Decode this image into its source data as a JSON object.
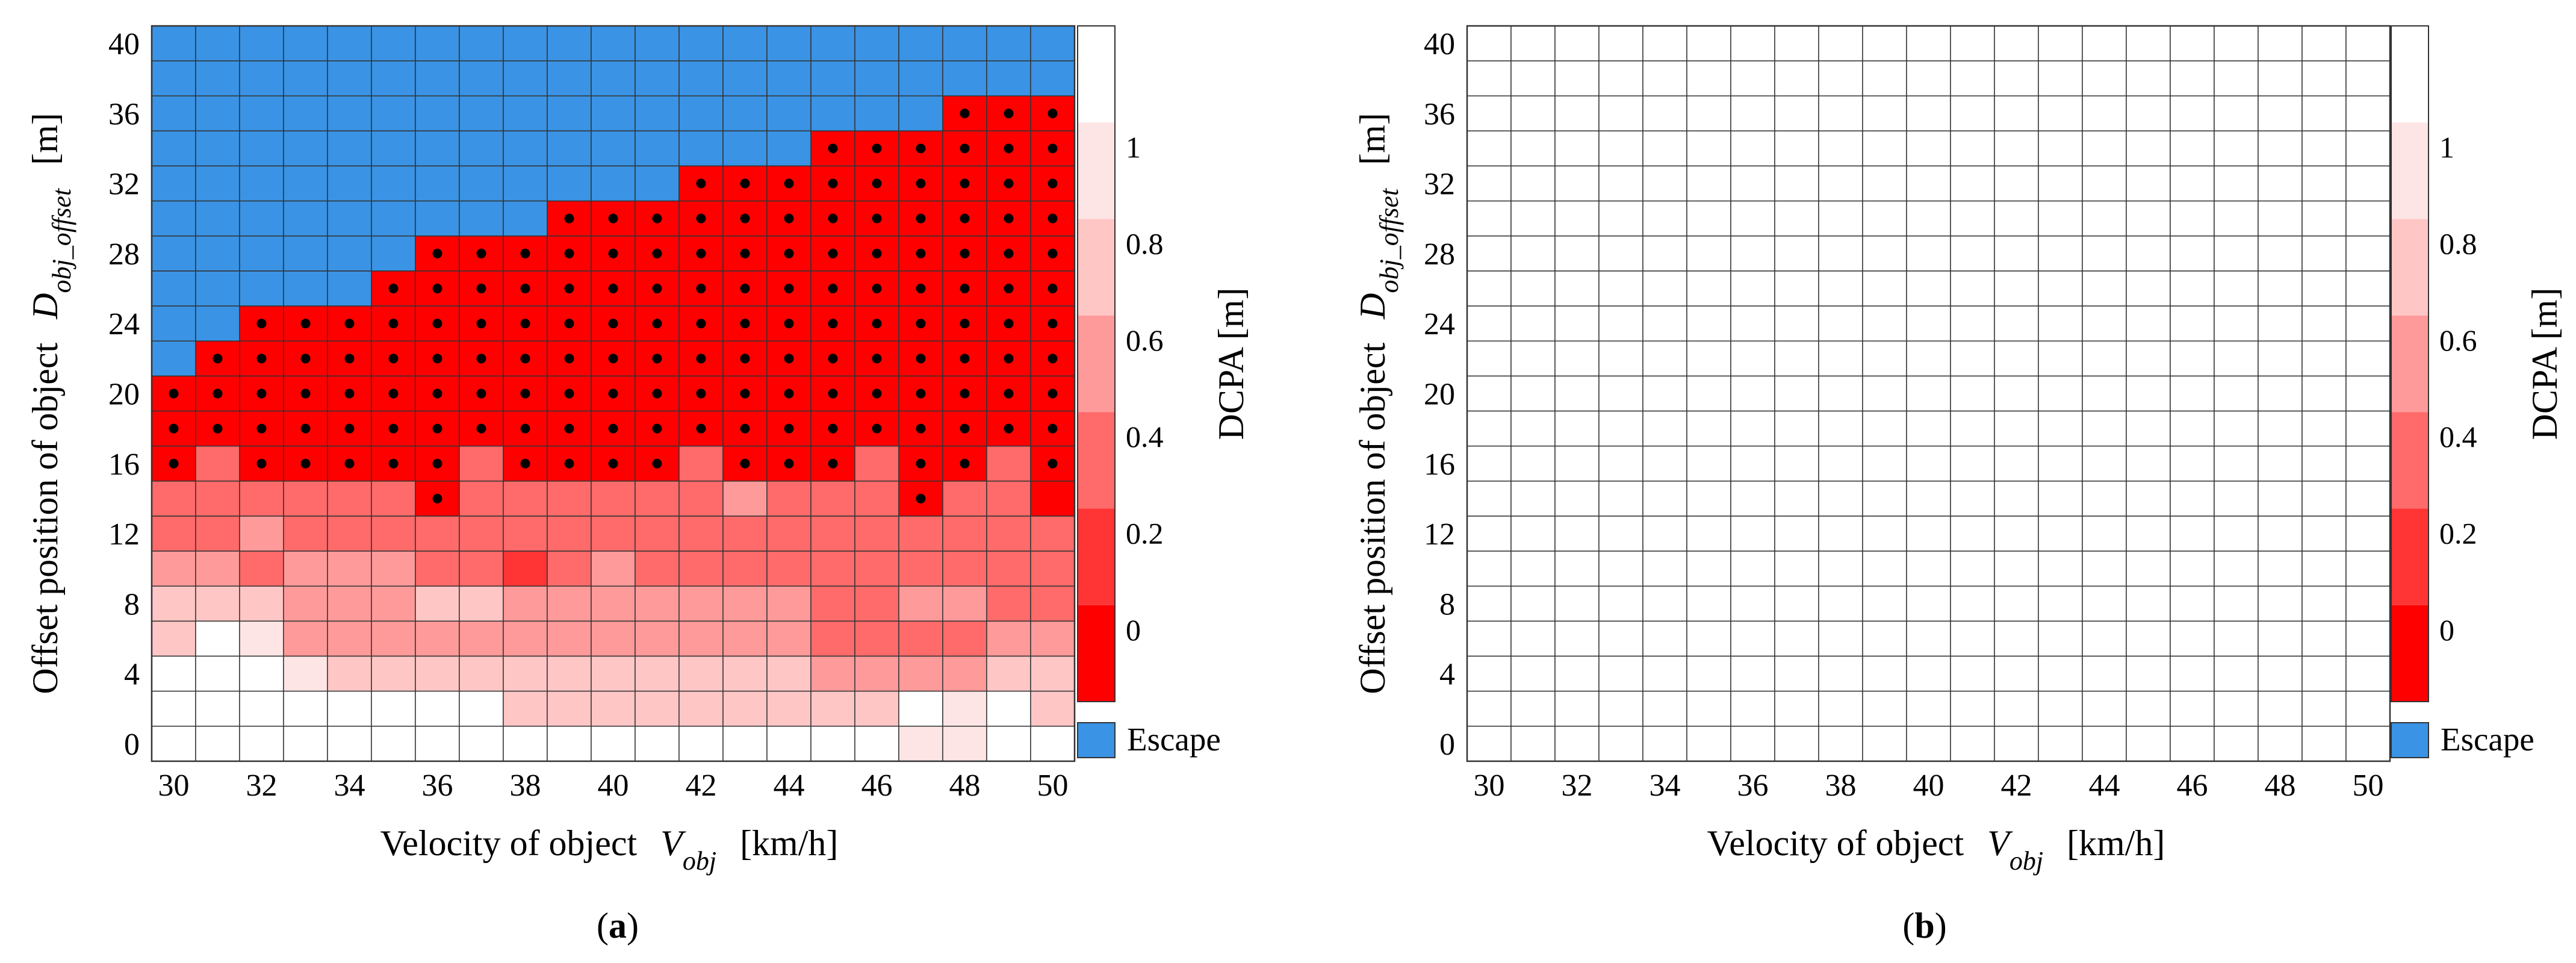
{
  "figure": {
    "label_a": "(a)",
    "label_b": "(b)"
  },
  "colors": {
    "escape": "#3a93e4",
    "cell_border": "#333333",
    "dot": "#000000",
    "white": "#ffffff",
    "red": "#ff0000"
  },
  "colorbar": {
    "title": "DCPA [m]",
    "ticks": [
      "0",
      "0.2",
      "0.4",
      "0.6",
      "0.8",
      "1"
    ],
    "shades": [
      "#ff0000",
      "#ff3535",
      "#ff6a6a",
      "#ff9a9a",
      "#ffc6c6",
      "#fde5e5",
      "#ffffff"
    ],
    "escape_label": "Escape"
  },
  "chart_data": [
    {
      "type": "heatmap",
      "panel": "(a)",
      "xlabel": {
        "prefix": "Velocity of object",
        "var": "V",
        "sub": "obj",
        "suffix": "[km/h]"
      },
      "ylabel": {
        "prefix": "Offset position of object",
        "var": "D",
        "sub": "obj_offset",
        "suffix": "[m]"
      },
      "x_values": [
        30,
        31,
        32,
        33,
        34,
        35,
        36,
        37,
        38,
        39,
        40,
        41,
        42,
        43,
        44,
        45,
        46,
        47,
        48,
        49,
        50
      ],
      "y_values": [
        0,
        2,
        4,
        6,
        8,
        10,
        12,
        14,
        16,
        18,
        20,
        22,
        24,
        26,
        28,
        30,
        32,
        34,
        36,
        38,
        40
      ],
      "x_tick_labels": [
        "30",
        "32",
        "34",
        "36",
        "38",
        "40",
        "42",
        "44",
        "46",
        "48",
        "50"
      ],
      "y_tick_labels": [
        "0",
        "4",
        "8",
        "12",
        "16",
        "20",
        "24",
        "28",
        "32",
        "36",
        "40"
      ],
      "value_scale": "shade index 0-6 (0 = DCPA 0 m red, 6 = DCPA >= 1 m white); E = Escape; D = DCPA 0 with collision dot",
      "rows_top_to_bottom": [
        "EEEEEEEEEEEEEEEEEEEEE",
        "EEEEEEEEEEEEEEEEEEEEE",
        "EEEEEEEEEEEEEEEEEEDDD",
        "EEEEEEEEEEEEEEEDDDDDD",
        "EEEEEEEEEEEEDDDDDDDDD",
        "EEEEEEEEEDDDDDDDDDDDD",
        "EEEEEEDDDDDDDDDDDDDDD",
        "EEEEEDDDDDDDDDDDDDDDD",
        "EEDDDDDDDDDDDDDDDDDDD",
        "EDDDDDDDDDDDDDDDDDDDD",
        "DDDDDDDDDDDDDDDDDDDDD",
        "DDDDDDDDDDDDDDDDDDDDD",
        "D2DDDDD2DDDD2DDD2DD2D",
        "222222D2222223222D220",
        "223222222222222222222",
        "332333221232222222222",
        "444333443333333223322",
        "465333333333333222233",
        "666544444444444333344",
        "666666664444444446564",
        "666666666666666665566"
      ]
    },
    {
      "type": "heatmap",
      "panel": "(b)",
      "xlabel": {
        "prefix": "Velocity of object",
        "var": "V",
        "sub": "obj",
        "suffix": "[km/h]"
      },
      "ylabel": {
        "prefix": "Offset position of object",
        "var": "D",
        "sub": "obj_offset",
        "suffix": "[m]"
      },
      "x_values": [
        30,
        31,
        32,
        33,
        34,
        35,
        36,
        37,
        38,
        39,
        40,
        41,
        42,
        43,
        44,
        45,
        46,
        47,
        48,
        49,
        50
      ],
      "y_values": [
        0,
        2,
        4,
        6,
        8,
        10,
        12,
        14,
        16,
        18,
        20,
        22,
        24,
        26,
        28,
        30,
        32,
        34,
        36,
        38,
        40
      ],
      "x_tick_labels": [
        "30",
        "32",
        "34",
        "36",
        "38",
        "40",
        "42",
        "44",
        "46",
        "48",
        "50"
      ],
      "y_tick_labels": [
        "0",
        "4",
        "8",
        "12",
        "16",
        "20",
        "24",
        "28",
        "32",
        "36",
        "40"
      ],
      "value_scale": "all cells white (DCPA >= 1 m)",
      "rows_top_to_bottom": []
    }
  ]
}
